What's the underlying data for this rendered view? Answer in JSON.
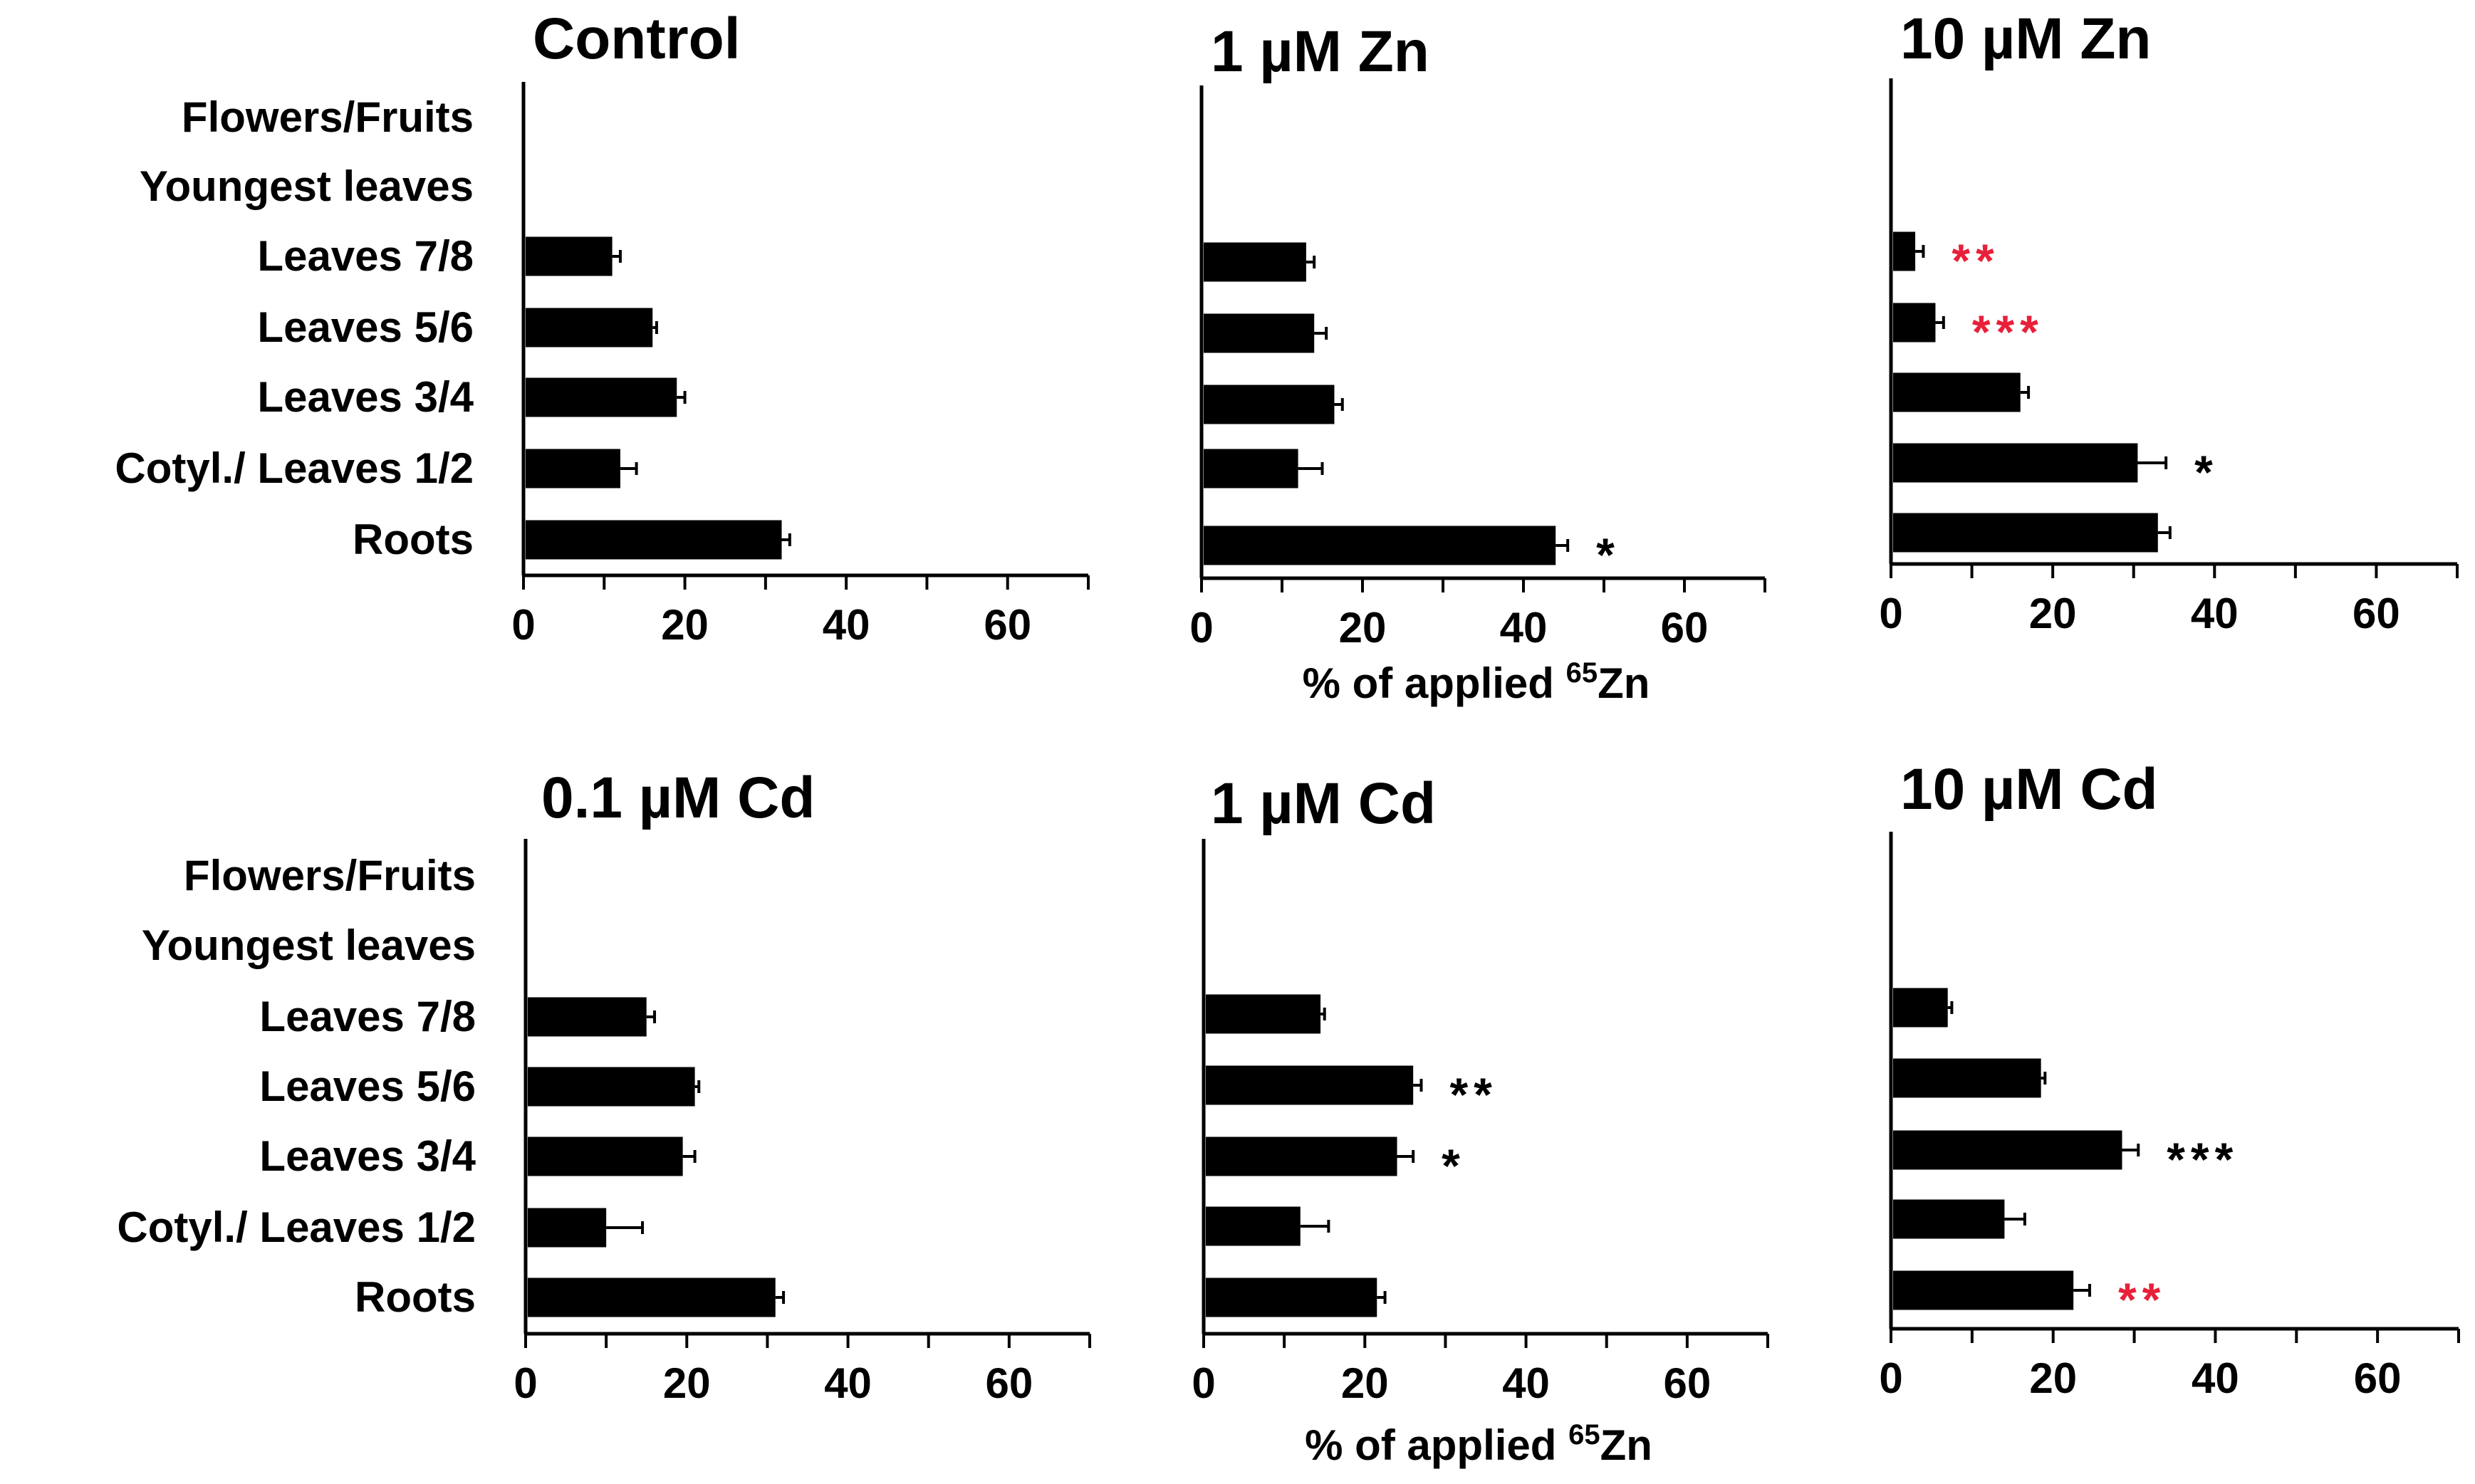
{
  "x_axis_label_prefix": "% of applied ",
  "x_axis_label_isotope_mass": "65",
  "x_axis_label_element": "Zn",
  "bar_color": "#000000",
  "highlight_color": "#e8203a",
  "default_annotation_color": "#000000",
  "chart_data": [
    {
      "type": "bar",
      "orientation": "horizontal",
      "title": "Control",
      "categories": [
        "Flowers/Fruits",
        "Youngest leaves",
        "Leaves 7/8",
        "Leaves 5/6",
        "Leaves 3/4",
        "Cotyl./ Leaves 1/2",
        "Roots"
      ],
      "values": [
        null,
        null,
        11,
        16,
        19,
        12,
        32
      ],
      "errors": [
        null,
        null,
        1,
        0.5,
        1,
        2,
        1
      ],
      "annotations": [
        null,
        null,
        null,
        null,
        null,
        null,
        null
      ],
      "annotation_colors": [
        null,
        null,
        null,
        null,
        null,
        null,
        null
      ],
      "xlim": [
        0,
        70
      ],
      "xticks": [
        0,
        20,
        40,
        60
      ],
      "xlabel": ""
    },
    {
      "type": "bar",
      "orientation": "horizontal",
      "title": "1 µM Zn",
      "categories": [
        "Flowers/Fruits",
        "Youngest leaves",
        "Leaves 7/8",
        "Leaves 5/6",
        "Leaves 3/4",
        "Cotyl./ Leaves 1/2",
        "Roots"
      ],
      "values": [
        null,
        null,
        13,
        14,
        16.5,
        12,
        44
      ],
      "errors": [
        null,
        null,
        1,
        1.5,
        1,
        3,
        1.5
      ],
      "annotations": [
        null,
        null,
        null,
        null,
        null,
        null,
        "*"
      ],
      "annotation_colors": [
        null,
        null,
        null,
        null,
        null,
        null,
        "black"
      ],
      "xlim": [
        0,
        70
      ],
      "xticks": [
        0,
        20,
        40,
        60
      ],
      "xlabel": "% of applied 65Zn"
    },
    {
      "type": "bar",
      "orientation": "horizontal",
      "title": "10 µM Zn",
      "categories": [
        "Flowers/Fruits",
        "Youngest leaves",
        "Leaves 7/8",
        "Leaves 5/6",
        "Leaves 3/4",
        "Cotyl./ Leaves 1/2",
        "Roots"
      ],
      "values": [
        null,
        null,
        3,
        5.5,
        16,
        30.5,
        33
      ],
      "errors": [
        null,
        null,
        1,
        1,
        1,
        3.5,
        1.5
      ],
      "annotations": [
        null,
        null,
        "**",
        "***",
        null,
        "*",
        null
      ],
      "annotation_colors": [
        null,
        null,
        "red",
        "red",
        null,
        "black",
        null
      ],
      "xlim": [
        0,
        70
      ],
      "xticks": [
        0,
        20,
        40,
        60
      ],
      "xlabel": ""
    },
    {
      "type": "bar",
      "orientation": "horizontal",
      "title": "0.1 µM Cd",
      "categories": [
        "Flowers/Fruits",
        "Youngest leaves",
        "Leaves 7/8",
        "Leaves 5/6",
        "Leaves 3/4",
        "Cotyl./ Leaves 1/2",
        "Roots"
      ],
      "values": [
        null,
        null,
        15,
        21,
        19.5,
        10,
        31
      ],
      "errors": [
        null,
        null,
        1,
        0.5,
        1.5,
        4.5,
        1
      ],
      "annotations": [
        null,
        null,
        null,
        null,
        null,
        null,
        null
      ],
      "annotation_colors": [
        null,
        null,
        null,
        null,
        null,
        null,
        null
      ],
      "xlim": [
        0,
        70
      ],
      "xticks": [
        0,
        20,
        40,
        60
      ],
      "xlabel": ""
    },
    {
      "type": "bar",
      "orientation": "horizontal",
      "title": "1 µM Cd",
      "categories": [
        "Flowers/Fruits",
        "Youngest leaves",
        "Leaves 7/8",
        "Leaves 5/6",
        "Leaves 3/4",
        "Cotyl./ Leaves 1/2",
        "Roots"
      ],
      "values": [
        null,
        null,
        14.5,
        26,
        24,
        12,
        21.5
      ],
      "errors": [
        null,
        null,
        0.5,
        1,
        2,
        3.5,
        1
      ],
      "annotations": [
        null,
        null,
        null,
        "**",
        "*",
        null,
        null
      ],
      "annotation_colors": [
        null,
        null,
        null,
        "black",
        "black",
        null,
        null
      ],
      "xlim": [
        0,
        70
      ],
      "xticks": [
        0,
        20,
        40,
        60
      ],
      "xlabel": "% of applied 65Zn"
    },
    {
      "type": "bar",
      "orientation": "horizontal",
      "title": "10 µM Cd",
      "categories": [
        "Flowers/Fruits",
        "Youngest leaves",
        "Leaves 7/8",
        "Leaves 5/6",
        "Leaves 3/4",
        "Cotyl./ Leaves 1/2",
        "Roots"
      ],
      "values": [
        null,
        null,
        7,
        18.5,
        28.5,
        14,
        22.5
      ],
      "errors": [
        null,
        null,
        0.5,
        0.5,
        2,
        2.5,
        2
      ],
      "annotations": [
        null,
        null,
        null,
        null,
        "***",
        null,
        "**"
      ],
      "annotation_colors": [
        null,
        null,
        null,
        null,
        "black",
        null,
        "red"
      ],
      "xlim": [
        0,
        70
      ],
      "xticks": [
        0,
        20,
        40,
        60
      ],
      "xlabel": ""
    }
  ]
}
